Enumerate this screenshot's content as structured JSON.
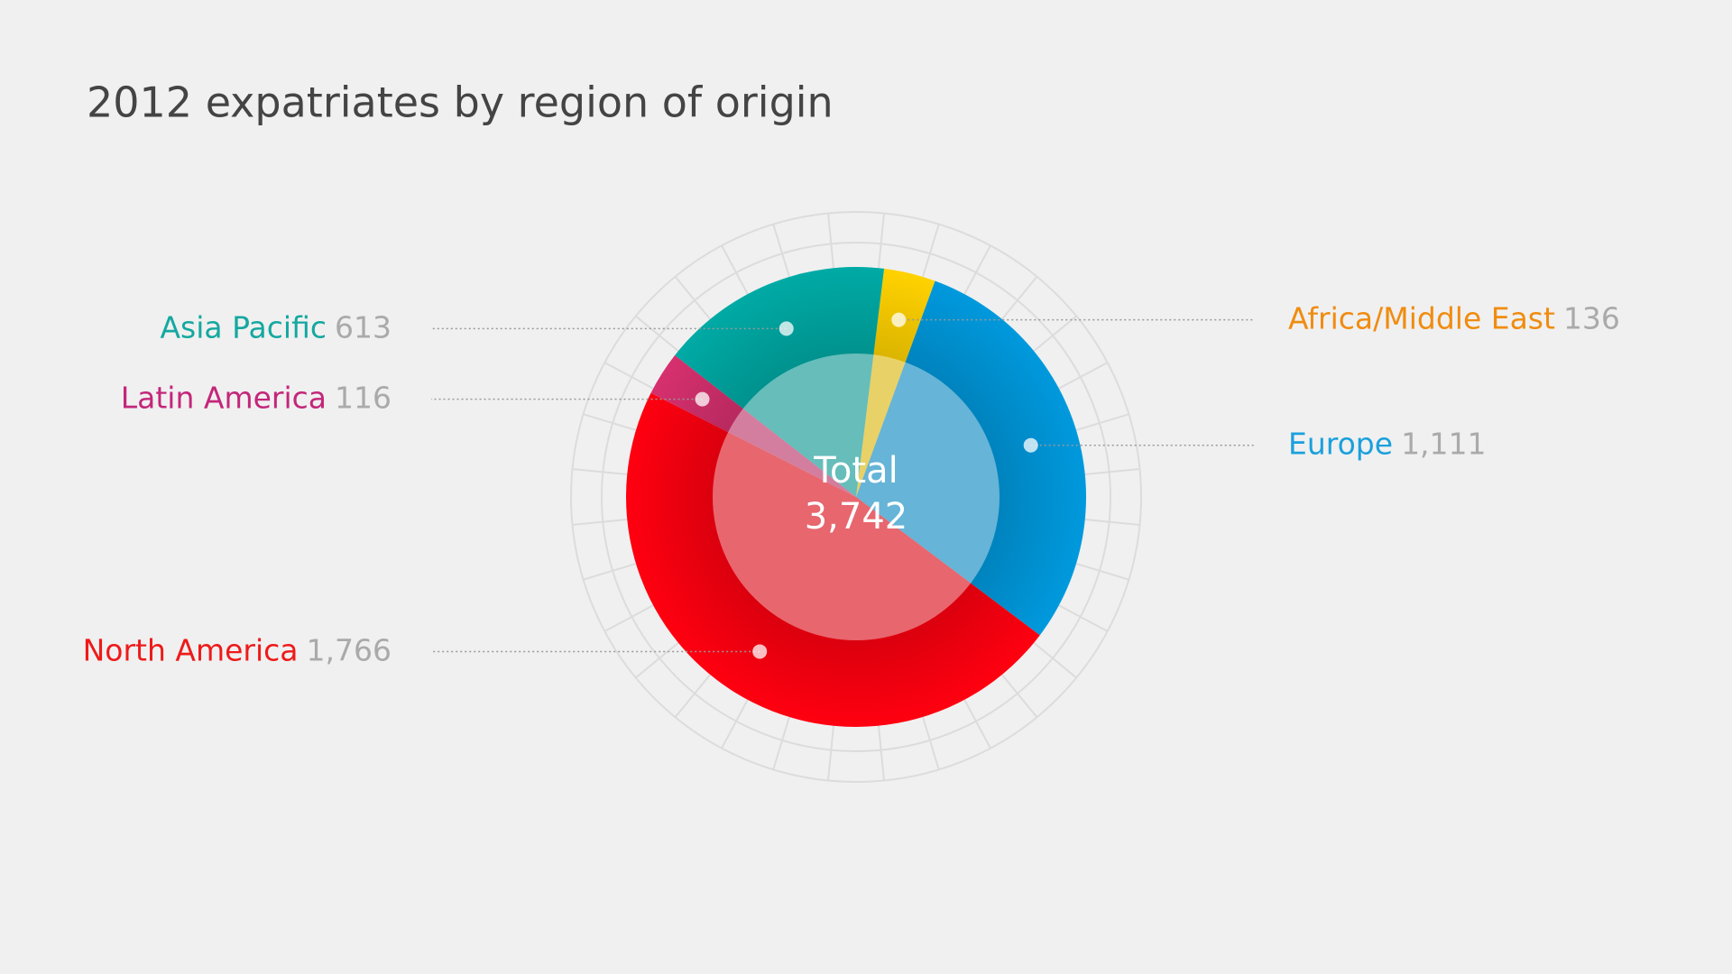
{
  "chart_data": {
    "type": "pie",
    "title": "2012 expatriates by region of origin",
    "categories": [
      "Africa/Middle East",
      "Europe",
      "North America",
      "Latin America",
      "Asia Pacific"
    ],
    "values": [
      136,
      1111,
      1766,
      116,
      613
    ],
    "value_labels": [
      "136",
      "1,111",
      "1,766",
      "116",
      "613"
    ],
    "colors": [
      "#ffd200",
      "#0099dd",
      "#ff0010",
      "#d6306e",
      "#00aaa5"
    ],
    "label_colors": [
      "#f08c10",
      "#1aa0dc",
      "#ee1a1a",
      "#c4267a",
      "#14a8a0"
    ],
    "center_label": "Total",
    "center_value": {
      "value": 3742,
      "label": "3,742"
    }
  }
}
